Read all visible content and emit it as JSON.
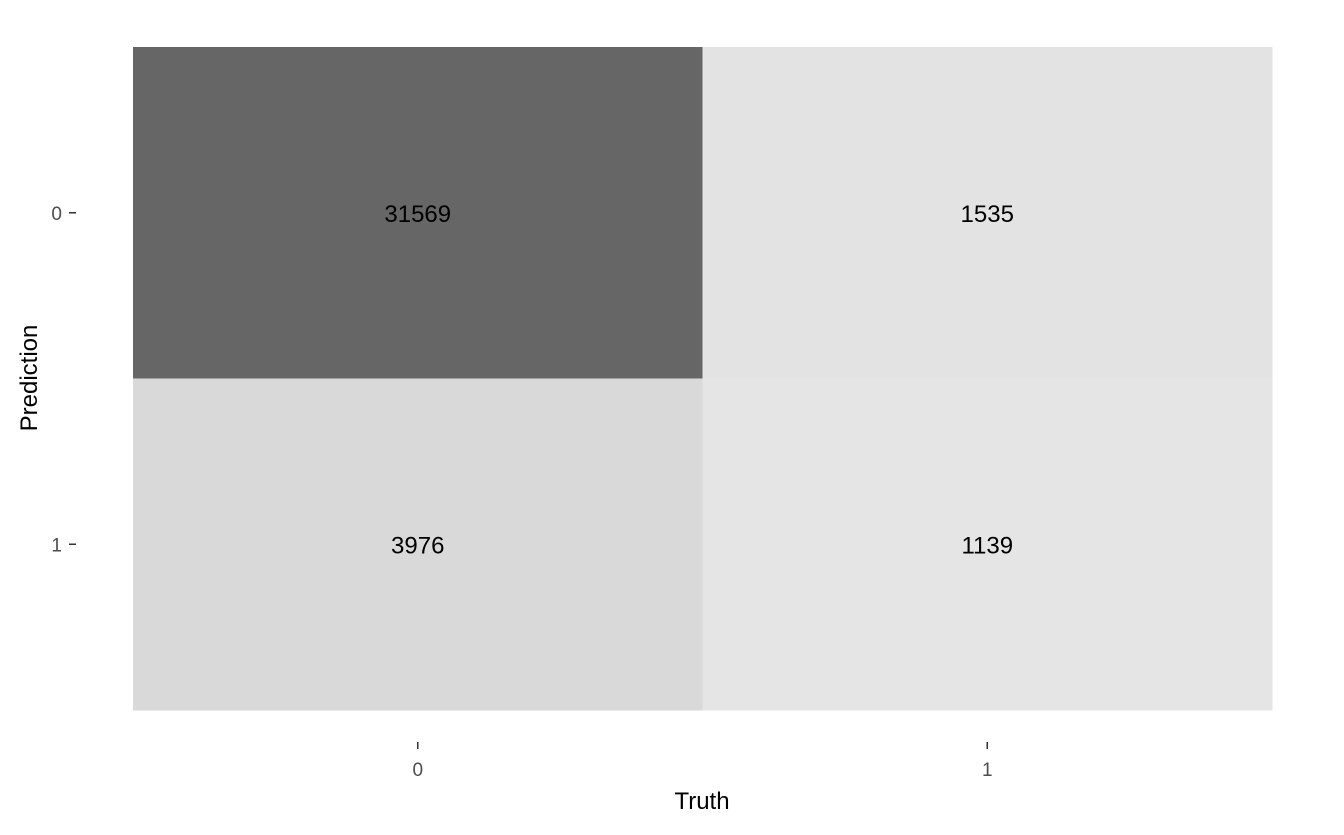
{
  "chart_data": {
    "type": "heatmap",
    "title": "",
    "xlabel": "Truth",
    "ylabel": "Prediction",
    "x_categories": [
      "0",
      "1"
    ],
    "y_categories": [
      "0",
      "1"
    ],
    "cells": [
      {
        "truth": "0",
        "prediction": "0",
        "value": 31569
      },
      {
        "truth": "1",
        "prediction": "0",
        "value": 1535
      },
      {
        "truth": "0",
        "prediction": "1",
        "value": 3976
      },
      {
        "truth": "1",
        "prediction": "1",
        "value": 1139
      }
    ],
    "color_low": "#e5e5e5",
    "color_high": "#666666",
    "grid": false,
    "legend": "none"
  }
}
